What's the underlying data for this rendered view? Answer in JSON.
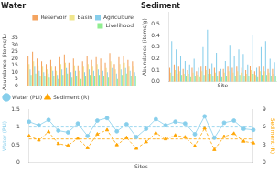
{
  "chart_data": [
    {
      "type": "bar",
      "title": "Water",
      "y_label": "Abundance (items/L)",
      "categories": [
        null,
        null,
        null,
        null,
        null,
        null,
        null,
        null,
        null,
        null,
        null,
        null,
        null,
        null,
        null,
        null,
        null,
        null,
        null,
        null,
        null,
        null,
        null,
        null
      ],
      "series": [
        {
          "name": "Reservoir",
          "color": "#F4A460",
          "values": [
            22,
            25,
            20,
            18,
            16,
            19,
            14,
            21,
            23,
            17,
            20,
            15,
            18,
            22,
            19,
            21,
            20,
            17,
            24,
            16,
            21,
            22,
            19,
            18
          ]
        },
        {
          "name": "Basin",
          "color": "#F0E68C",
          "values": [
            16,
            18,
            15,
            14,
            12,
            14,
            11,
            16,
            17,
            13,
            15,
            11,
            14,
            16,
            14,
            16,
            15,
            13,
            18,
            12,
            16,
            17,
            14,
            14
          ]
        },
        {
          "name": "Agriculture",
          "color": "#87CEEB",
          "values": [
            12,
            14,
            11,
            10,
            9,
            11,
            8,
            12,
            13,
            10,
            11,
            8,
            10,
            12,
            11,
            12,
            11,
            10,
            13,
            9,
            12,
            13,
            11,
            10
          ]
        },
        {
          "name": "Livelihood",
          "color": "#90EE90",
          "values": [
            8,
            9,
            7,
            7,
            6,
            7,
            5,
            8,
            9,
            6,
            7,
            5,
            7,
            8,
            7,
            8,
            7,
            6,
            9,
            5,
            8,
            9,
            7,
            7
          ]
        }
      ],
      "ylim": [
        0,
        35
      ],
      "yticks": [
        0,
        5,
        10,
        15,
        20,
        25,
        30,
        35
      ],
      "legend": "upper right",
      "grid": false,
      "tick_labels": "y"
    },
    {
      "type": "bar",
      "title": "Sediment",
      "y_label": "Abundance (items/g)",
      "x_label": "Site",
      "categories": [
        null,
        null,
        null,
        null,
        null,
        null,
        null,
        null,
        null,
        null,
        null,
        null,
        null,
        null,
        null,
        null,
        null,
        null,
        null,
        null,
        null,
        null,
        null,
        null
      ],
      "series": [
        {
          "name": "Reservoir",
          "color": "#F4A460",
          "values": [
            0.12,
            0.15,
            0.13,
            0.11,
            0.1,
            0.12,
            0.09,
            0.13,
            0.14,
            0.11,
            0.12,
            0.09,
            0.11,
            0.13,
            0.12,
            0.13,
            0.12,
            0.1,
            0.14,
            0.09,
            0.13,
            0.13,
            0.11,
            0.11
          ]
        },
        {
          "name": "Basin",
          "color": "#F0E68C",
          "values": [
            0.08,
            0.1,
            0.09,
            0.07,
            0.07,
            0.08,
            0.06,
            0.09,
            0.1,
            0.07,
            0.08,
            0.06,
            0.08,
            0.09,
            0.08,
            0.09,
            0.08,
            0.07,
            0.1,
            0.06,
            0.09,
            0.09,
            0.08,
            0.07
          ]
        },
        {
          "name": "Agriculture",
          "color": "#87CEEB",
          "values": [
            0.35,
            0.28,
            0.22,
            0.18,
            0.15,
            0.2,
            0.12,
            0.3,
            0.45,
            0.16,
            0.25,
            0.11,
            0.18,
            0.32,
            0.22,
            0.28,
            0.24,
            0.15,
            0.4,
            0.12,
            0.3,
            0.35,
            0.2,
            0.17
          ]
        },
        {
          "name": "Livelihood",
          "color": "#90EE90",
          "values": [
            0.05,
            0.07,
            0.06,
            0.05,
            0.04,
            0.05,
            0.04,
            0.06,
            0.07,
            0.05,
            0.05,
            0.04,
            0.05,
            0.06,
            0.05,
            0.06,
            0.05,
            0.05,
            0.07,
            0.04,
            0.06,
            0.06,
            0.05,
            0.05
          ]
        }
      ],
      "ylim": [
        0,
        0.6
      ],
      "yticks": [
        {
          "value": 0,
          "label": "0.0"
        },
        0.1,
        0.2,
        0.3,
        0.4,
        0.5
      ],
      "grid": false,
      "tick_labels": "y"
    },
    {
      "type": "scatter",
      "x_label": "Sites",
      "y_label": "Water (PLI)",
      "y2_label": "Sediment (R)",
      "categories": [
        null,
        null,
        null,
        null,
        null,
        null,
        null,
        null,
        null,
        null,
        null,
        null,
        null,
        null,
        null,
        null,
        null,
        null,
        null,
        null,
        null,
        null,
        null,
        null
      ],
      "series": [
        {
          "name": "Water (PLI)",
          "color": "#87CEEB",
          "marker": "circle",
          "line_style": "solid",
          "hline": 1.0,
          "values": [
            1.15,
            1.05,
            1.2,
            0.9,
            0.85,
            1.1,
            0.75,
            1.18,
            1.25,
            0.88,
            1.08,
            0.72,
            0.95,
            1.22,
            1.05,
            1.15,
            1.1,
            0.8,
            1.3,
            0.7,
            1.12,
            1.18,
            0.95,
            0.92
          ]
        },
        {
          "name": "Sediment (R)",
          "color": "#FFA500",
          "marker": "triangle",
          "line_style": "dashed",
          "hline": 4.0,
          "axis": "y2",
          "values": [
            4.5,
            3.8,
            5.2,
            3.2,
            2.9,
            4.1,
            2.5,
            4.8,
            5.5,
            3.0,
            4.2,
            2.4,
            3.5,
            5.0,
            4.0,
            4.6,
            4.3,
            2.8,
            5.8,
            2.2,
            4.4,
            4.9,
            3.6,
            3.3
          ]
        }
      ],
      "ylim": [
        0,
        1.5
      ],
      "yticks": [
        0,
        0.5,
        1,
        1.5
      ],
      "y2lim": [
        0,
        9
      ],
      "y2ticks": [
        0,
        3,
        6,
        9
      ],
      "legend": "upper left",
      "grid": false,
      "tick_labels": "y"
    }
  ]
}
